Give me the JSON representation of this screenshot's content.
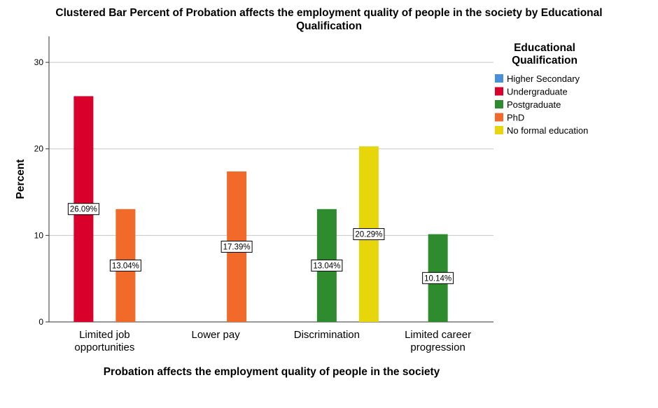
{
  "chart_data": {
    "type": "bar",
    "title": "Clustered Bar Percent of Probation affects the employment quality of people in the society by Educational Qualification",
    "xlabel": "Probation affects the employment quality of people in the society",
    "ylabel": "Percent",
    "ylim": [
      0,
      33
    ],
    "yticks": [
      0,
      10,
      20,
      30
    ],
    "grid": true,
    "categories": [
      "Limited job opportunities",
      "Lower pay",
      "Discrimination",
      "Limited career progression"
    ],
    "legend": {
      "title": "Educational Qualification",
      "position": "right"
    },
    "series": [
      {
        "name": "Higher Secondary",
        "color": "#4a90d9",
        "values": [
          null,
          null,
          null,
          null
        ],
        "labels": [
          null,
          null,
          null,
          null
        ]
      },
      {
        "name": "Undergraduate",
        "color": "#d9002b",
        "values": [
          26.09,
          null,
          null,
          null
        ],
        "labels": [
          "26.09%",
          null,
          null,
          null
        ]
      },
      {
        "name": "Postgraduate",
        "color": "#2e8b2e",
        "values": [
          null,
          null,
          13.04,
          10.14
        ],
        "labels": [
          null,
          null,
          "13.04%",
          "10.14%"
        ]
      },
      {
        "name": "PhD",
        "color": "#f26a2a",
        "values": [
          13.04,
          17.39,
          null,
          null
        ],
        "labels": [
          "13.04%",
          "17.39%",
          null,
          null
        ]
      },
      {
        "name": "No formal education",
        "color": "#e6d60a",
        "values": [
          null,
          null,
          20.29,
          null
        ],
        "labels": [
          null,
          null,
          "20.29%",
          null
        ]
      }
    ]
  }
}
